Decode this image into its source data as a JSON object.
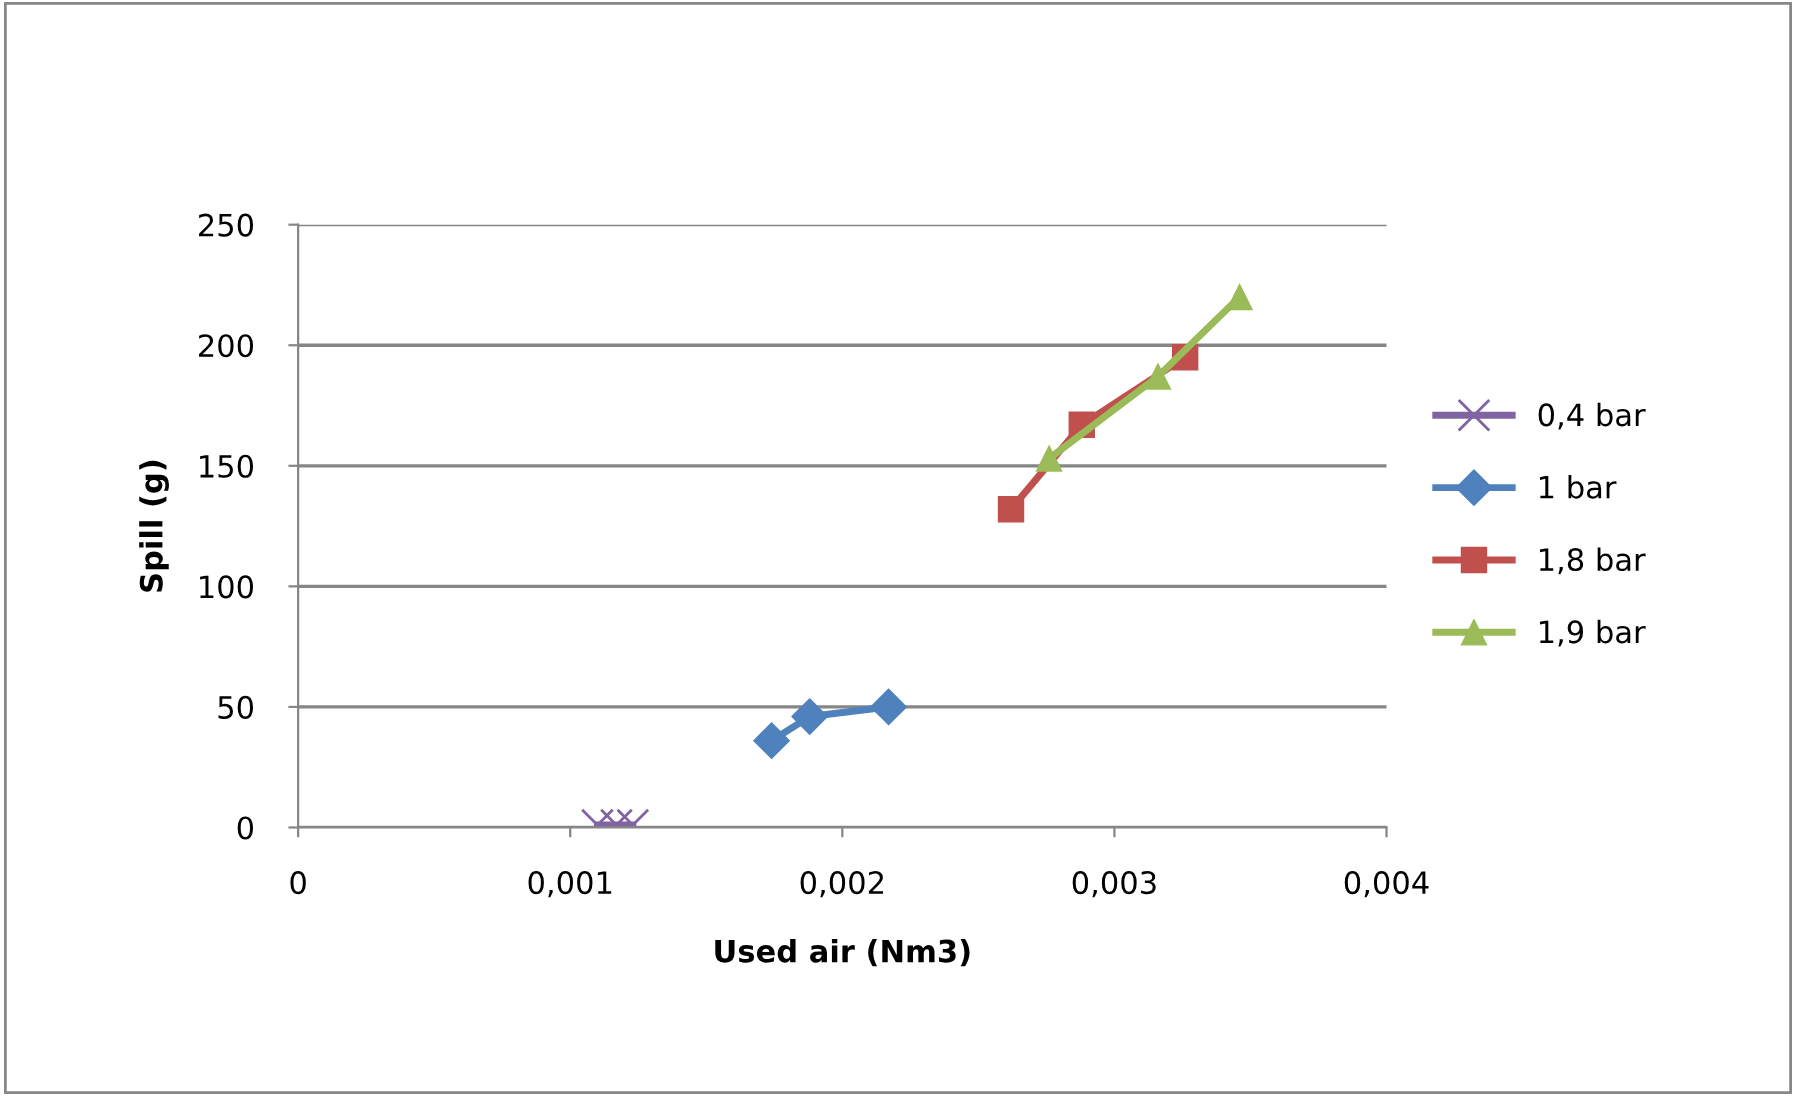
{
  "chart_data": {
    "type": "line",
    "xlabel": "Used air (Nm3)",
    "ylabel": "Spill (g)",
    "xlim": [
      0,
      0.004
    ],
    "xticks": [
      {
        "value": 0,
        "label": "0"
      },
      {
        "value": 0.001,
        "label": "0,001"
      },
      {
        "value": 0.002,
        "label": "0,002"
      },
      {
        "value": 0.003,
        "label": "0,003"
      },
      {
        "value": 0.004,
        "label": "0,004"
      }
    ],
    "ylim": [
      0,
      250
    ],
    "yticks": [
      0,
      50,
      100,
      150,
      200,
      250
    ],
    "grid": "y",
    "legend": "right",
    "series": [
      {
        "name": "0,4 bar",
        "color": "#8064a2",
        "marker": "cross",
        "x": [
          0.0011,
          0.00117,
          0.00123
        ],
        "values": [
          1,
          1,
          1
        ]
      },
      {
        "name": "1 bar",
        "color": "#4f81bd",
        "marker": "diamond",
        "x": [
          0.00174,
          0.00188,
          0.00217
        ],
        "values": [
          36,
          46,
          50
        ]
      },
      {
        "name": "1,8 bar",
        "color": "#c0504d",
        "marker": "square",
        "x": [
          0.00262,
          0.00288,
          0.00326
        ],
        "values": [
          132,
          167,
          195
        ]
      },
      {
        "name": "1,9 bar",
        "color": "#9bbb59",
        "marker": "triangle",
        "x": [
          0.00276,
          0.00316,
          0.00346
        ],
        "values": [
          153,
          187,
          220
        ]
      }
    ]
  }
}
